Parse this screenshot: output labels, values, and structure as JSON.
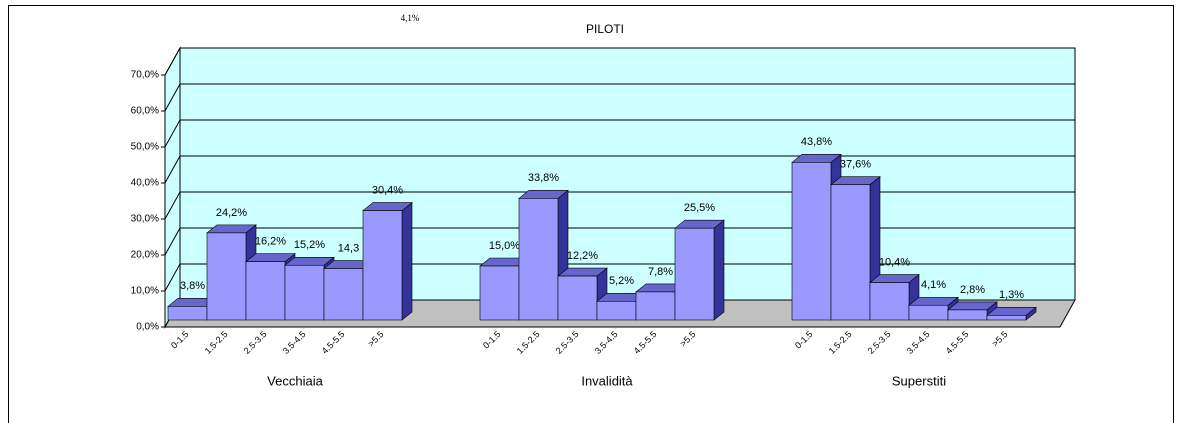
{
  "chart_data": {
    "type": "bar3d",
    "title": "PILOTI",
    "annotation": "4,1%",
    "categories": [
      "0-1.5",
      "1.5-2.5",
      "2.5-3.5",
      "3.5-4.5",
      "4.5-5.5",
      ">5.5"
    ],
    "groups": [
      {
        "name": "Vecchiaia",
        "values": [
          3.8,
          24.2,
          16.2,
          15.2,
          14.3,
          30.4
        ],
        "value_labels": [
          "3,8%",
          "24,2%",
          "16,2%",
          "15,2%",
          "14,3",
          "30,4%"
        ]
      },
      {
        "name": "Invalidità",
        "values": [
          15.0,
          33.8,
          12.2,
          5.2,
          7.8,
          25.5
        ],
        "value_labels": [
          "15,0%",
          "33,8%",
          "12,2%",
          "5,2%",
          "7,8%",
          "25,5%"
        ]
      },
      {
        "name": "Superstiti",
        "values": [
          43.8,
          37.6,
          10.4,
          4.1,
          2.8,
          1.3
        ],
        "value_labels": [
          "43,8%",
          "37,6%",
          "10,4%",
          "4,1%",
          "2,8%",
          "1,3%"
        ]
      }
    ],
    "color": "#9999ff",
    "ylim": [
      0,
      70
    ],
    "yticks": [
      {
        "value": 0,
        "label": "0,0%"
      },
      {
        "value": 10,
        "label": "10,0%"
      },
      {
        "value": 20,
        "label": "20,0%"
      },
      {
        "value": 30,
        "label": "30,0%"
      },
      {
        "value": 40,
        "label": "40,0%"
      },
      {
        "value": 50,
        "label": "50,0%"
      },
      {
        "value": 60,
        "label": "60,0%"
      },
      {
        "value": 70,
        "label": "70,0%"
      }
    ],
    "grid": true
  }
}
